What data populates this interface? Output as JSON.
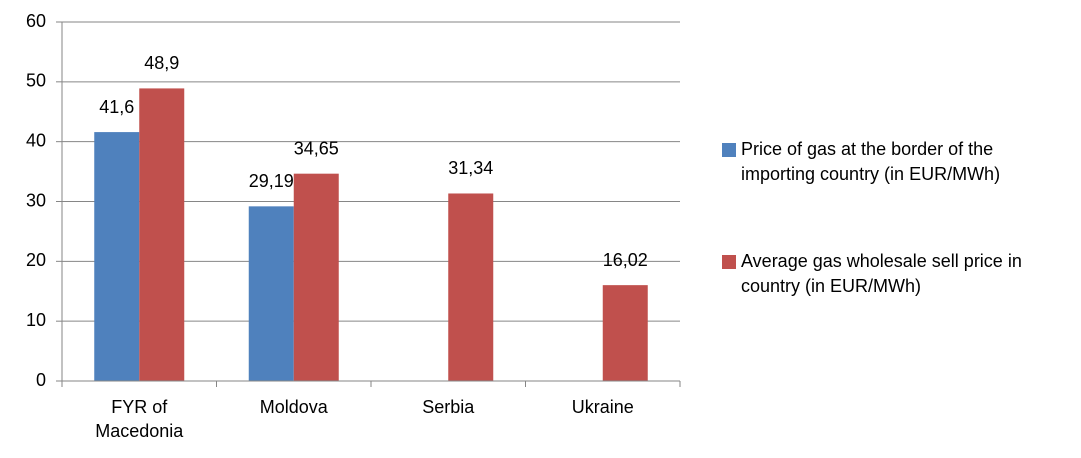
{
  "chart_data": {
    "type": "bar",
    "categories": [
      "FYR of Macedonia",
      "Moldova",
      "Serbia",
      "Ukraine"
    ],
    "series": [
      {
        "name": "Price of gas  at the border of the importing country (in EUR/MWh)",
        "color": "#4f81bd",
        "values": [
          41.6,
          29.19,
          null,
          null
        ],
        "value_labels": [
          "41,6",
          "29,19",
          null,
          null
        ]
      },
      {
        "name": "Average gas wholesale sell price in country (in EUR/MWh)",
        "color": "#c0504d",
        "values": [
          48.9,
          34.65,
          31.34,
          16.02
        ],
        "value_labels": [
          "48,9",
          "34,65",
          "31,34",
          "16,02"
        ]
      }
    ],
    "ylim": [
      0,
      60
    ],
    "yticks": [
      0,
      10,
      20,
      30,
      40,
      50,
      60
    ],
    "grid": true,
    "legend": "right"
  }
}
